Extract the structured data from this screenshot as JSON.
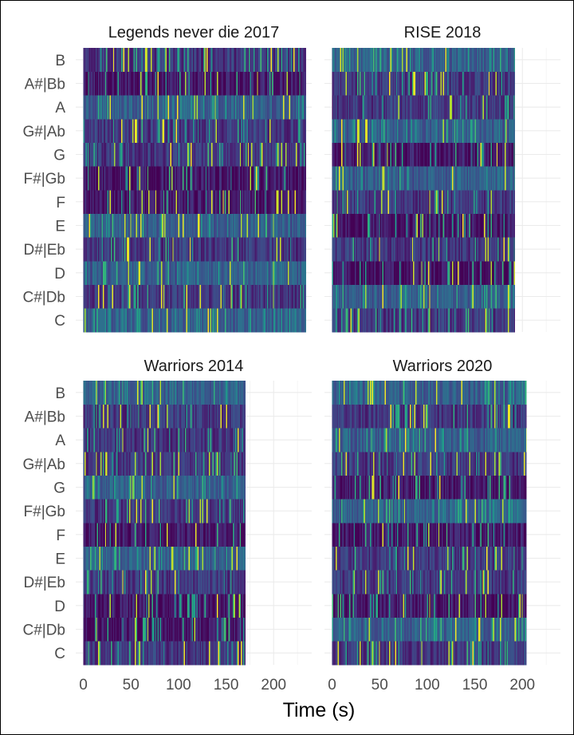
{
  "chart_data": {
    "type": "heatmap",
    "xlabel": "Time (s)",
    "ylabel": "",
    "pitch_classes": [
      "C",
      "C#|Db",
      "D",
      "D#|Eb",
      "E",
      "F",
      "F#|Gb",
      "G",
      "G#|Ab",
      "A",
      "A#|Bb",
      "B"
    ],
    "x_ticks": [
      0,
      50,
      100,
      150,
      200
    ],
    "xlim": [
      -8,
      240
    ],
    "color_scale": "viridis",
    "fill_range": [
      0,
      1
    ],
    "grid": true,
    "legend": "none",
    "colors": {
      "low": "#440154",
      "mid": "#21908c",
      "high": "#fde725",
      "grid": "#ebebeb",
      "text": "#4d4d4d"
    },
    "panels": [
      {
        "title": "Legends never die 2017",
        "duration": 234,
        "prominent_pitches": [
          "C",
          "D",
          "E",
          "A"
        ],
        "quiet_pitches": [
          "F",
          "F#|Gb",
          "A#|Bb"
        ]
      },
      {
        "title": "RISE 2018",
        "duration": 192,
        "prominent_pitches": [
          "C#|Db",
          "G#|Ab",
          "F#|Gb",
          "B"
        ],
        "quiet_pitches": [
          "D",
          "G",
          "E"
        ]
      },
      {
        "title": "Warriors 2014",
        "duration": 170,
        "prominent_pitches": [
          "E",
          "B",
          "G"
        ],
        "quiet_pitches": [
          "D",
          "F",
          "C#|Db"
        ]
      },
      {
        "title": "Warriors 2020",
        "duration": 204,
        "prominent_pitches": [
          "C#|Db",
          "F#|Gb",
          "A",
          "B"
        ],
        "quiet_pitches": [
          "D",
          "F",
          "G"
        ]
      }
    ]
  }
}
